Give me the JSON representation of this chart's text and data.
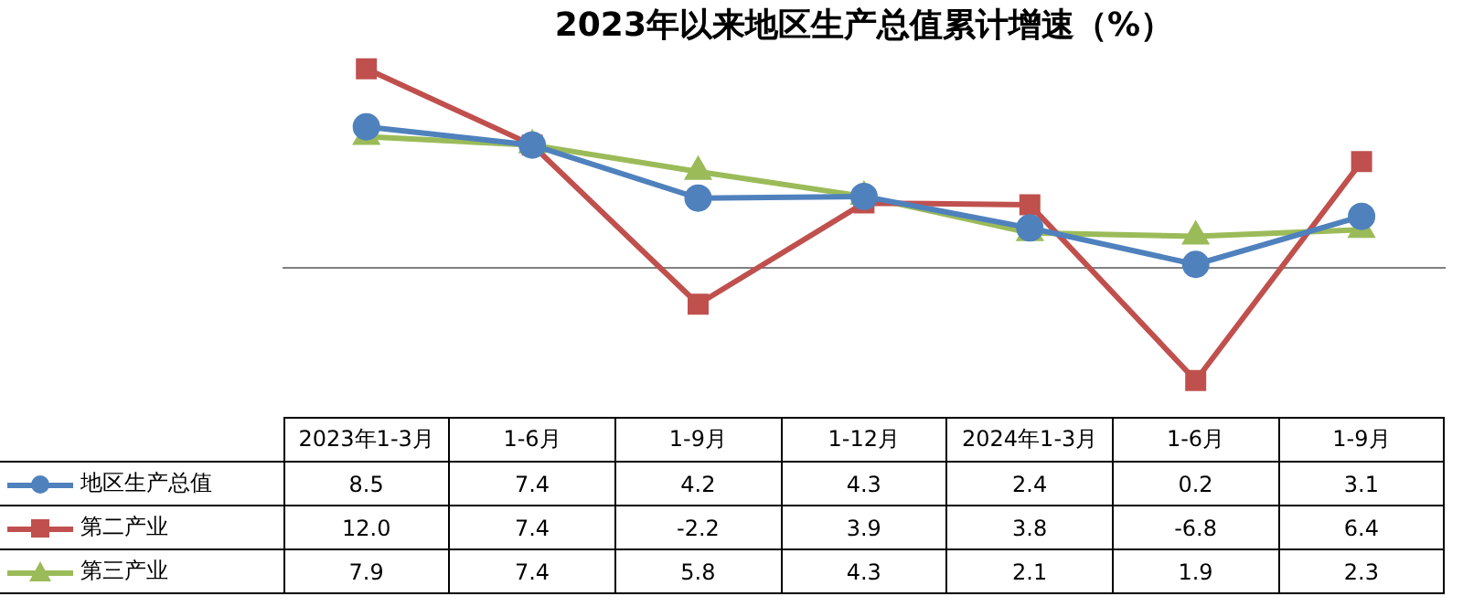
{
  "chart_data": {
    "type": "line",
    "title": "2023年以来地区生产总值累计增速（%）",
    "categories": [
      "2023年1-3月",
      "1-6月",
      "1-9月",
      "1-12月",
      "2024年1-3月",
      "1-6月",
      "1-9月"
    ],
    "series": [
      {
        "name": "地区生产总值",
        "color": "#4f81bd",
        "marker": "circle",
        "values": [
          8.5,
          7.4,
          4.2,
          4.3,
          2.4,
          0.2,
          3.1
        ],
        "value_labels": [
          "8.5",
          "7.4",
          "4.2",
          "4.3",
          "2.4",
          "0.2",
          "3.1"
        ]
      },
      {
        "name": "第二产业",
        "color": "#c0504d",
        "marker": "square",
        "values": [
          12.0,
          7.4,
          -2.2,
          3.9,
          3.8,
          -6.8,
          6.4
        ],
        "value_labels": [
          "12.0",
          "7.4",
          "-2.2",
          "3.9",
          "3.8",
          "-6.8",
          "6.4"
        ]
      },
      {
        "name": "第三产业",
        "color": "#9bbb59",
        "marker": "triangle",
        "values": [
          7.9,
          7.4,
          5.8,
          4.3,
          2.1,
          1.9,
          2.3
        ],
        "value_labels": [
          "7.9",
          "7.4",
          "5.8",
          "4.3",
          "2.1",
          "1.9",
          "2.3"
        ]
      }
    ],
    "legend": "bottom"
  }
}
